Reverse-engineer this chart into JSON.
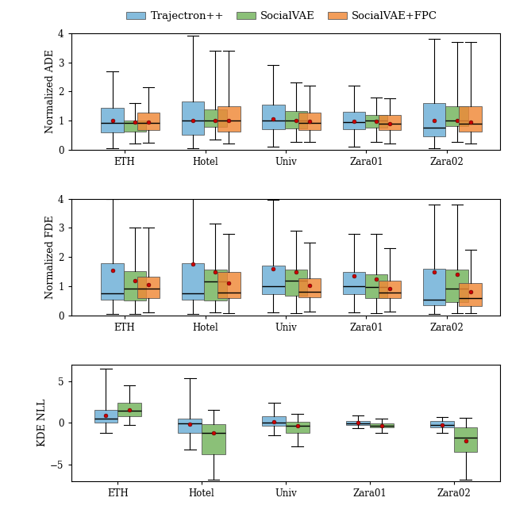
{
  "categories": [
    "ETH",
    "Hotel",
    "Univ",
    "Zara01",
    "Zara02"
  ],
  "colors": {
    "trajectron": "#6aaed6",
    "socialvae": "#72b35a",
    "socialvae_fpc": "#f08836"
  },
  "legend_labels": [
    "Trajectron++",
    "SocialVAE",
    "SocialVAE+FPC"
  ],
  "plot1_ylabel": "Normalized ADE",
  "plot2_ylabel": "Normalized FDE",
  "plot3_ylabel": "KDE NLL",
  "ade_data": {
    "trajectron": {
      "ETH": {
        "whislo": 0.05,
        "q1": 0.6,
        "med": 0.92,
        "q3": 1.45,
        "whishi": 2.7,
        "mean": 1.0
      },
      "Hotel": {
        "whislo": 0.05,
        "q1": 0.5,
        "med": 1.0,
        "q3": 1.65,
        "whishi": 3.9,
        "mean": 1.0
      },
      "Univ": {
        "whislo": 0.1,
        "q1": 0.7,
        "med": 1.0,
        "q3": 1.55,
        "whishi": 2.9,
        "mean": 1.05
      },
      "Zara01": {
        "whislo": 0.1,
        "q1": 0.7,
        "med": 0.95,
        "q3": 1.3,
        "whishi": 2.2,
        "mean": 0.98
      },
      "Zara02": {
        "whislo": 0.05,
        "q1": 0.45,
        "med": 0.75,
        "q3": 1.6,
        "whishi": 3.8,
        "mean": 1.0
      }
    },
    "socialvae": {
      "ETH": {
        "whislo": 0.2,
        "q1": 0.62,
        "med": 0.92,
        "q3": 1.0,
        "whishi": 1.6,
        "mean": 0.95
      },
      "Hotel": {
        "whislo": 0.35,
        "q1": 0.78,
        "med": 1.0,
        "q3": 1.38,
        "whishi": 3.4,
        "mean": 1.0
      },
      "Univ": {
        "whislo": 0.28,
        "q1": 0.72,
        "med": 1.0,
        "q3": 1.32,
        "whishi": 2.3,
        "mean": 1.0
      },
      "Zara01": {
        "whislo": 0.28,
        "q1": 0.75,
        "med": 1.0,
        "q3": 1.2,
        "whishi": 1.8,
        "mean": 0.98
      },
      "Zara02": {
        "whislo": 0.28,
        "q1": 0.82,
        "med": 1.0,
        "q3": 1.48,
        "whishi": 3.7,
        "mean": 1.0
      }
    },
    "socialvae_fpc": {
      "ETH": {
        "whislo": 0.25,
        "q1": 0.68,
        "med": 0.92,
        "q3": 1.28,
        "whishi": 2.15,
        "mean": 0.95
      },
      "Hotel": {
        "whislo": 0.2,
        "q1": 0.62,
        "med": 1.0,
        "q3": 1.48,
        "whishi": 3.4,
        "mean": 1.0
      },
      "Univ": {
        "whislo": 0.28,
        "q1": 0.68,
        "med": 0.92,
        "q3": 1.28,
        "whishi": 2.2,
        "mean": 0.98
      },
      "Zara01": {
        "whislo": 0.22,
        "q1": 0.68,
        "med": 0.88,
        "q3": 1.18,
        "whishi": 1.75,
        "mean": 0.9
      },
      "Zara02": {
        "whislo": 0.22,
        "q1": 0.62,
        "med": 0.88,
        "q3": 1.48,
        "whishi": 3.7,
        "mean": 0.95
      }
    }
  },
  "fde_data": {
    "trajectron": {
      "ETH": {
        "whislo": 0.05,
        "q1": 0.55,
        "med": 0.75,
        "q3": 1.8,
        "whishi": 4.0,
        "mean": 1.55
      },
      "Hotel": {
        "whislo": 0.05,
        "q1": 0.55,
        "med": 0.75,
        "q3": 1.8,
        "whishi": 4.3,
        "mean": 1.75
      },
      "Univ": {
        "whislo": 0.1,
        "q1": 0.72,
        "med": 1.0,
        "q3": 1.72,
        "whishi": 3.95,
        "mean": 1.6
      },
      "Zara01": {
        "whislo": 0.1,
        "q1": 0.72,
        "med": 1.0,
        "q3": 1.5,
        "whishi": 2.8,
        "mean": 1.35
      },
      "Zara02": {
        "whislo": 0.05,
        "q1": 0.35,
        "med": 0.55,
        "q3": 1.6,
        "whishi": 3.8,
        "mean": 1.5
      }
    },
    "socialvae": {
      "ETH": {
        "whislo": 0.05,
        "q1": 0.5,
        "med": 0.92,
        "q3": 1.52,
        "whishi": 3.0,
        "mean": 1.2
      },
      "Hotel": {
        "whislo": 0.1,
        "q1": 0.52,
        "med": 1.15,
        "q3": 1.58,
        "whishi": 3.15,
        "mean": 1.5
      },
      "Univ": {
        "whislo": 0.08,
        "q1": 0.68,
        "med": 1.18,
        "q3": 1.58,
        "whishi": 2.9,
        "mean": 1.5
      },
      "Zara01": {
        "whislo": 0.08,
        "q1": 0.58,
        "med": 0.98,
        "q3": 1.42,
        "whishi": 2.8,
        "mean": 1.25
      },
      "Zara02": {
        "whislo": 0.08,
        "q1": 0.45,
        "med": 0.92,
        "q3": 1.58,
        "whishi": 3.8,
        "mean": 1.4
      }
    },
    "socialvae_fpc": {
      "ETH": {
        "whislo": 0.1,
        "q1": 0.58,
        "med": 0.92,
        "q3": 1.32,
        "whishi": 3.0,
        "mean": 1.05
      },
      "Hotel": {
        "whislo": 0.08,
        "q1": 0.58,
        "med": 0.78,
        "q3": 1.48,
        "whishi": 2.8,
        "mean": 1.1
      },
      "Univ": {
        "whislo": 0.12,
        "q1": 0.62,
        "med": 0.82,
        "q3": 1.28,
        "whishi": 2.5,
        "mean": 1.02
      },
      "Zara01": {
        "whislo": 0.12,
        "q1": 0.58,
        "med": 0.78,
        "q3": 1.18,
        "whishi": 2.3,
        "mean": 0.92
      },
      "Zara02": {
        "whislo": 0.08,
        "q1": 0.32,
        "med": 0.58,
        "q3": 1.12,
        "whishi": 2.25,
        "mean": 0.82
      }
    }
  },
  "kde_data": {
    "trajectron": {
      "ETH": {
        "whislo": -1.2,
        "q1": 0.0,
        "med": 0.5,
        "q3": 1.5,
        "whishi": 6.5,
        "mean": 0.9
      },
      "Hotel": {
        "whislo": -3.2,
        "q1": -1.2,
        "med": -0.05,
        "q3": 0.5,
        "whishi": 5.3,
        "mean": -0.15
      },
      "Univ": {
        "whislo": -1.5,
        "q1": -0.4,
        "med": 0.05,
        "q3": 0.75,
        "whishi": 2.4,
        "mean": 0.15
      },
      "Zara01": {
        "whislo": -0.7,
        "q1": -0.25,
        "med": -0.05,
        "q3": 0.25,
        "whishi": 0.9,
        "mean": -0.02
      },
      "Zara02": {
        "whislo": -1.2,
        "q1": -0.6,
        "med": -0.25,
        "q3": 0.25,
        "whishi": 0.7,
        "mean": -0.25
      }
    },
    "socialvae": {
      "ETH": {
        "whislo": -0.3,
        "q1": 0.8,
        "med": 1.4,
        "q3": 2.4,
        "whishi": 4.5,
        "mean": 1.5
      },
      "Hotel": {
        "whislo": -6.8,
        "q1": -3.8,
        "med": -1.2,
        "q3": -0.2,
        "whishi": 1.5,
        "mean": -1.2
      },
      "Univ": {
        "whislo": -2.8,
        "q1": -1.2,
        "med": -0.4,
        "q3": 0.15,
        "whishi": 1.1,
        "mean": -0.4
      },
      "Zara01": {
        "whislo": -1.2,
        "q1": -0.6,
        "med": -0.35,
        "q3": -0.12,
        "whishi": 0.45,
        "mean": -0.35
      },
      "Zara02": {
        "whislo": -6.8,
        "q1": -3.5,
        "med": -1.8,
        "q3": -0.6,
        "whishi": 0.6,
        "mean": -2.2
      }
    }
  },
  "ylim_ade": [
    0,
    4
  ],
  "ylim_fde": [
    0,
    4
  ],
  "ylim_kde": [
    -7,
    7
  ],
  "yticks_ade": [
    0,
    1,
    2,
    3,
    4
  ],
  "yticks_fde": [
    0,
    1,
    2,
    3,
    4
  ],
  "yticks_kde": [
    -5,
    0,
    5
  ]
}
